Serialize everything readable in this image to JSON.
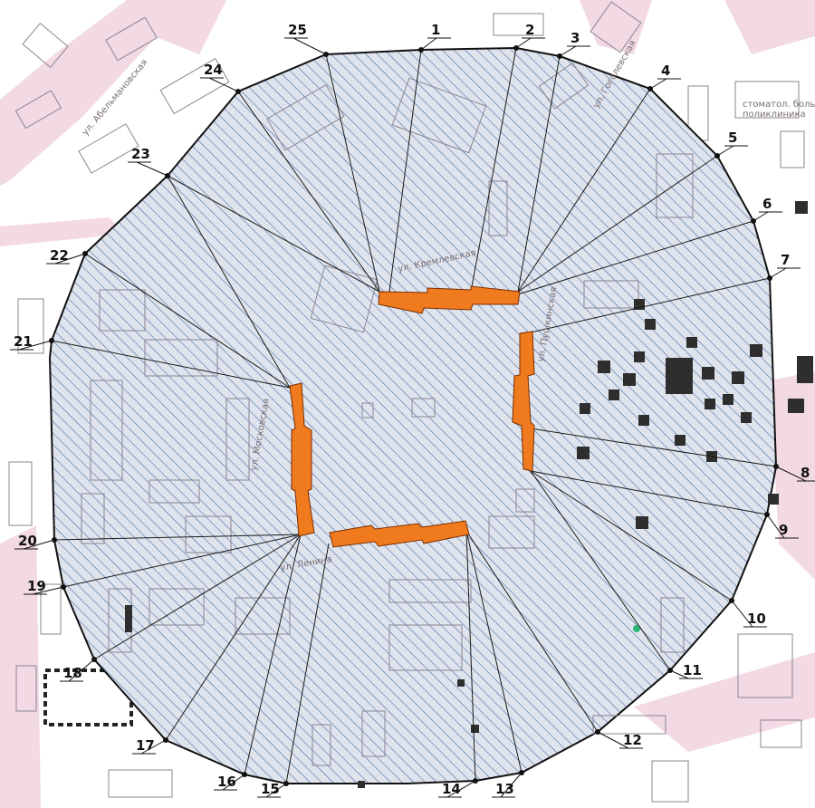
{
  "map": {
    "colors": {
      "background": "#ffffff",
      "roads": "#f2d9e4",
      "zone_fill": "#dfe4ec",
      "hatch": "#3d63a8",
      "boundary": "#111111",
      "rays": "#1a1a1a",
      "facades": "#f07a1e",
      "facade_outline": "#7a2d00",
      "marker_green": "#2bb673"
    },
    "street_labels": [
      {
        "text": "ул. Кремлевская"
      },
      {
        "text": "ул. Абельмановская"
      },
      {
        "text": "ул. Московская"
      },
      {
        "text": "ул. Пушкинская"
      },
      {
        "text": "ул. Гоголевская"
      },
      {
        "text": "ул. Ленина"
      }
    ],
    "poi_label": "стоматол. больница №1\nполиклиника",
    "points": [
      {
        "id": "1",
        "label": "1"
      },
      {
        "id": "2",
        "label": "2"
      },
      {
        "id": "3",
        "label": "3"
      },
      {
        "id": "4",
        "label": "4"
      },
      {
        "id": "5",
        "label": "5"
      },
      {
        "id": "6",
        "label": "6"
      },
      {
        "id": "7",
        "label": "7"
      },
      {
        "id": "8",
        "label": "8"
      },
      {
        "id": "9",
        "label": "9"
      },
      {
        "id": "10",
        "label": "10"
      },
      {
        "id": "11",
        "label": "11"
      },
      {
        "id": "12",
        "label": "12"
      },
      {
        "id": "13",
        "label": "13"
      },
      {
        "id": "14",
        "label": "14"
      },
      {
        "id": "15",
        "label": "15"
      },
      {
        "id": "16",
        "label": "16"
      },
      {
        "id": "17",
        "label": "17"
      },
      {
        "id": "18",
        "label": "18"
      },
      {
        "id": "19",
        "label": "19"
      },
      {
        "id": "20",
        "label": "20"
      },
      {
        "id": "21",
        "label": "21"
      },
      {
        "id": "22",
        "label": "22"
      },
      {
        "id": "23",
        "label": "23"
      },
      {
        "id": "24",
        "label": "24"
      },
      {
        "id": "25",
        "label": "25"
      }
    ]
  }
}
